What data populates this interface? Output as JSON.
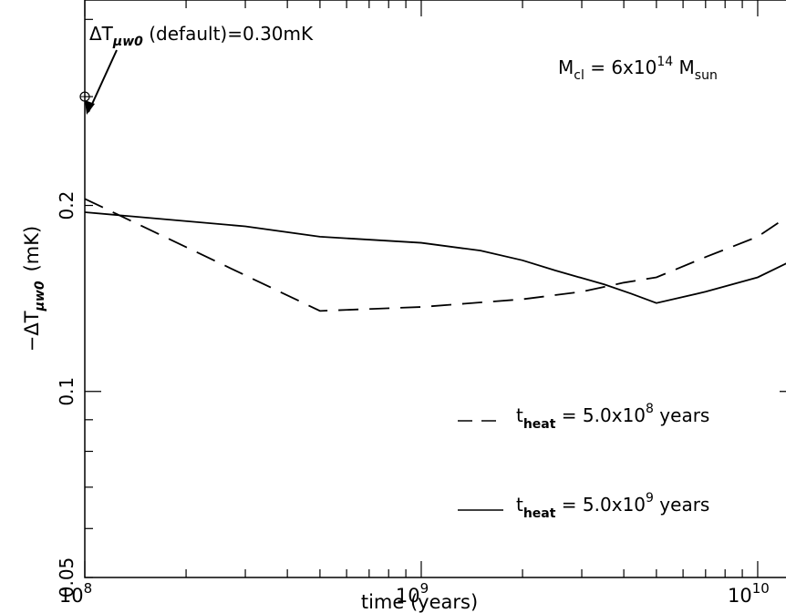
{
  "chart_data": {
    "type": "line",
    "xlabel": "time (years)",
    "ylabel_main": "−ΔT",
    "ylabel_sub": "μw0",
    "ylabel_unit": "(mK)",
    "xscale": "log",
    "yscale": "log",
    "xlim": [
      100000000,
      13000000000
    ],
    "ylim": [
      0.05,
      0.43
    ],
    "x_ticks": [
      {
        "value": 100000000,
        "base": "10",
        "exp": "8"
      },
      {
        "value": 1000000000,
        "base": "10",
        "exp": "9"
      },
      {
        "value": 10000000000,
        "base": "10",
        "exp": "10"
      }
    ],
    "y_ticks": [
      {
        "value": 0.05,
        "label": "0.05"
      },
      {
        "value": 0.1,
        "label": "0.1"
      },
      {
        "value": 0.2,
        "label": "0.2"
      }
    ],
    "annotation": {
      "text_prefix": "ΔT",
      "text_sub": "μw0",
      "text_suffix": " (default)=0.30mK",
      "point": {
        "x": 100000000,
        "y": 0.3
      }
    },
    "mass_label": {
      "prefix": "M",
      "sub": "cl",
      "mid": " = 6x10",
      "exp": "14",
      "mid2": " M",
      "sub2": "sun"
    },
    "series": [
      {
        "name": "t_heat = 5.0x10^8 years",
        "legend": {
          "prefix": "t",
          "sub": "heat",
          "mid": " = 5.0x10",
          "exp": "8",
          "suffix": " years"
        },
        "style": "dashed",
        "points": [
          [
            100000000,
            0.205
          ],
          [
            500000000,
            0.135
          ],
          [
            1000000000,
            0.137
          ],
          [
            2000000000,
            0.141
          ],
          [
            3000000000,
            0.145
          ],
          [
            4000000000,
            0.15
          ],
          [
            5000000000,
            0.153
          ],
          [
            7000000000,
            0.165
          ],
          [
            10000000000,
            0.178
          ],
          [
            13000000000,
            0.196
          ]
        ]
      },
      {
        "name": "t_heat = 5.0x10^9 years",
        "legend": {
          "prefix": "t",
          "sub": "heat",
          "mid": " = 5.0x10",
          "exp": "9",
          "suffix": " years"
        },
        "style": "solid",
        "points": [
          [
            100000000,
            0.195
          ],
          [
            300000000,
            0.185
          ],
          [
            500000000,
            0.178
          ],
          [
            1000000000,
            0.174
          ],
          [
            1500000000,
            0.169
          ],
          [
            2000000000,
            0.163
          ],
          [
            2500000000,
            0.157
          ],
          [
            3500000000,
            0.149
          ],
          [
            4200000000,
            0.144
          ],
          [
            5000000000,
            0.139
          ],
          [
            7000000000,
            0.145
          ],
          [
            10000000000,
            0.153
          ],
          [
            13000000000,
            0.164
          ]
        ]
      }
    ]
  }
}
